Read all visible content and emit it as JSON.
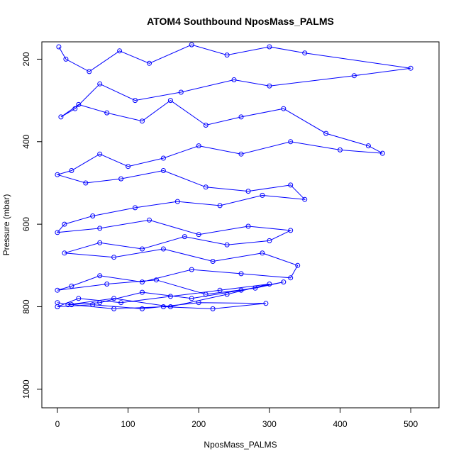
{
  "chart_data": {
    "type": "line",
    "title": "ATOM4 Southbound NposMass_PALMS",
    "xlabel": "NposMass_PALMS",
    "ylabel": "Pressure (mbar)",
    "xlim": [
      -22,
      540
    ],
    "ylim": [
      1045,
      158
    ],
    "y_reversed": true,
    "grid": false,
    "legend": "none",
    "x_ticks": [
      0,
      100,
      200,
      300,
      400,
      500
    ],
    "y_ticks": [
      200,
      400,
      600,
      800,
      1000
    ],
    "series_color": "#0000ff",
    "marker": "open-circle",
    "series": [
      {
        "x": [
          2,
          12,
          45,
          88,
          130,
          190,
          240,
          300,
          350,
          500,
          420,
          300,
          250,
          175,
          110,
          60,
          25,
          5,
          30,
          70,
          120,
          160,
          210,
          260,
          320,
          380,
          440,
          460,
          400,
          330,
          260,
          200,
          150,
          100,
          60,
          20,
          0,
          40,
          90,
          150,
          210,
          270,
          330,
          350,
          290,
          230,
          170,
          110,
          50,
          10,
          0,
          60,
          130,
          200,
          270,
          330,
          300,
          240,
          180,
          120,
          60,
          10,
          80,
          150,
          220,
          290,
          340,
          330,
          260,
          190,
          120,
          60,
          20,
          0,
          70,
          140,
          210,
          280,
          320,
          260,
          190,
          120,
          60,
          15,
          80,
          160,
          240,
          300,
          230,
          160,
          90,
          30,
          0,
          50,
          120,
          200,
          295,
          220,
          150,
          80,
          20,
          0
        ],
        "y": [
          170,
          200,
          230,
          180,
          210,
          165,
          190,
          170,
          185,
          222,
          240,
          265,
          250,
          280,
          300,
          260,
          320,
          340,
          310,
          330,
          350,
          300,
          360,
          340,
          320,
          380,
          410,
          428,
          420,
          400,
          430,
          410,
          440,
          460,
          430,
          470,
          480,
          500,
          490,
          470,
          510,
          520,
          505,
          540,
          530,
          555,
          545,
          560,
          580,
          600,
          620,
          610,
          590,
          625,
          605,
          615,
          640,
          650,
          630,
          660,
          645,
          670,
          680,
          660,
          690,
          670,
          700,
          730,
          720,
          710,
          740,
          725,
          750,
          760,
          745,
          735,
          770,
          755,
          740,
          760,
          780,
          765,
          790,
          795,
          780,
          800,
          770,
          745,
          760,
          775,
          790,
          780,
          800,
          795,
          805,
          790,
          792,
          805,
          800,
          805,
          795,
          790
        ]
      }
    ]
  }
}
